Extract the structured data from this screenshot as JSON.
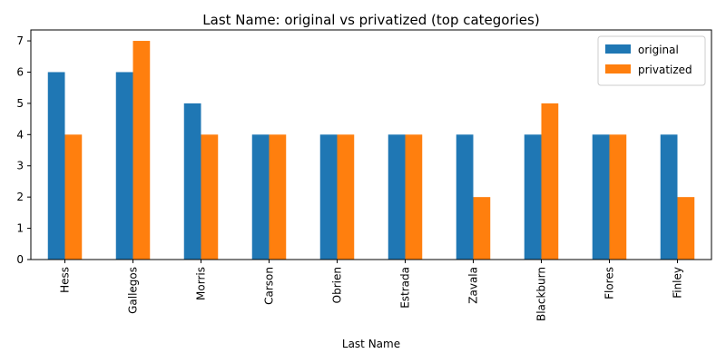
{
  "chart_data": {
    "type": "bar",
    "title": "Last Name: original vs privatized (top categories)",
    "xlabel": "Last Name",
    "ylabel": "",
    "categories": [
      "Hess",
      "Gallegos",
      "Morris",
      "Carson",
      "Obrien",
      "Estrada",
      "Zavala",
      "Blackburn",
      "Flores",
      "Finley"
    ],
    "series": [
      {
        "name": "original",
        "color": "#1f77b4",
        "values": [
          6,
          6,
          5,
          4,
          4,
          4,
          4,
          4,
          4,
          4
        ]
      },
      {
        "name": "privatized",
        "color": "#ff7f0e",
        "values": [
          4,
          7,
          4,
          4,
          4,
          4,
          2,
          5,
          4,
          2
        ]
      }
    ],
    "ylim": [
      0,
      7.35
    ],
    "yticks": [
      0,
      1,
      2,
      3,
      4,
      5,
      6,
      7
    ],
    "grid": false,
    "legend_position": "top-right"
  }
}
